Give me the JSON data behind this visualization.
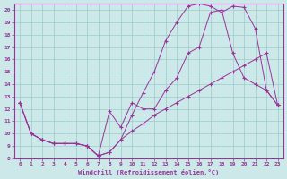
{
  "xlabel": "Windchill (Refroidissement éolien,°C)",
  "background_color": "#cce8e8",
  "grid_color": "#99cccc",
  "line_color": "#993399",
  "xlim": [
    -0.5,
    23.5
  ],
  "ylim": [
    8,
    20.5
  ],
  "xticks": [
    0,
    1,
    2,
    3,
    4,
    5,
    6,
    7,
    8,
    9,
    10,
    11,
    12,
    13,
    14,
    15,
    16,
    17,
    18,
    19,
    20,
    21,
    22,
    23
  ],
  "yticks": [
    8,
    9,
    10,
    11,
    12,
    13,
    14,
    15,
    16,
    17,
    18,
    19,
    20
  ],
  "line1_x": [
    0,
    1,
    2,
    3,
    4,
    5,
    6,
    7,
    8,
    9,
    10,
    11,
    12,
    13,
    14,
    15,
    16,
    17,
    18,
    19,
    20,
    21,
    22,
    23
  ],
  "line1_y": [
    12.5,
    10.0,
    9.5,
    9.2,
    9.2,
    9.2,
    9.0,
    8.2,
    8.5,
    9.5,
    10.2,
    10.8,
    11.5,
    12.0,
    12.5,
    13.0,
    13.5,
    14.0,
    14.5,
    15.0,
    15.5,
    16.0,
    16.5,
    12.3
  ],
  "line2_x": [
    0,
    1,
    2,
    3,
    4,
    5,
    6,
    7,
    8,
    9,
    10,
    11,
    12,
    13,
    14,
    15,
    16,
    17,
    18,
    19,
    20,
    21,
    22,
    23
  ],
  "line2_y": [
    12.5,
    10.0,
    9.5,
    9.2,
    9.2,
    9.2,
    9.0,
    8.2,
    8.5,
    9.5,
    11.5,
    13.3,
    15.0,
    17.5,
    19.0,
    20.3,
    20.5,
    20.3,
    19.8,
    20.3,
    20.2,
    18.5,
    13.5,
    12.3
  ],
  "line3_x": [
    0,
    1,
    2,
    3,
    4,
    5,
    6,
    7,
    8,
    9,
    10,
    11,
    12,
    13,
    14,
    15,
    16,
    17,
    18,
    19,
    20,
    21,
    22,
    23
  ],
  "line3_y": [
    12.5,
    10.0,
    9.5,
    9.2,
    9.2,
    9.2,
    9.0,
    8.2,
    11.8,
    10.5,
    12.5,
    12.0,
    12.0,
    13.5,
    14.5,
    16.5,
    17.0,
    19.8,
    20.0,
    16.5,
    14.5,
    14.0,
    13.5,
    12.3
  ]
}
